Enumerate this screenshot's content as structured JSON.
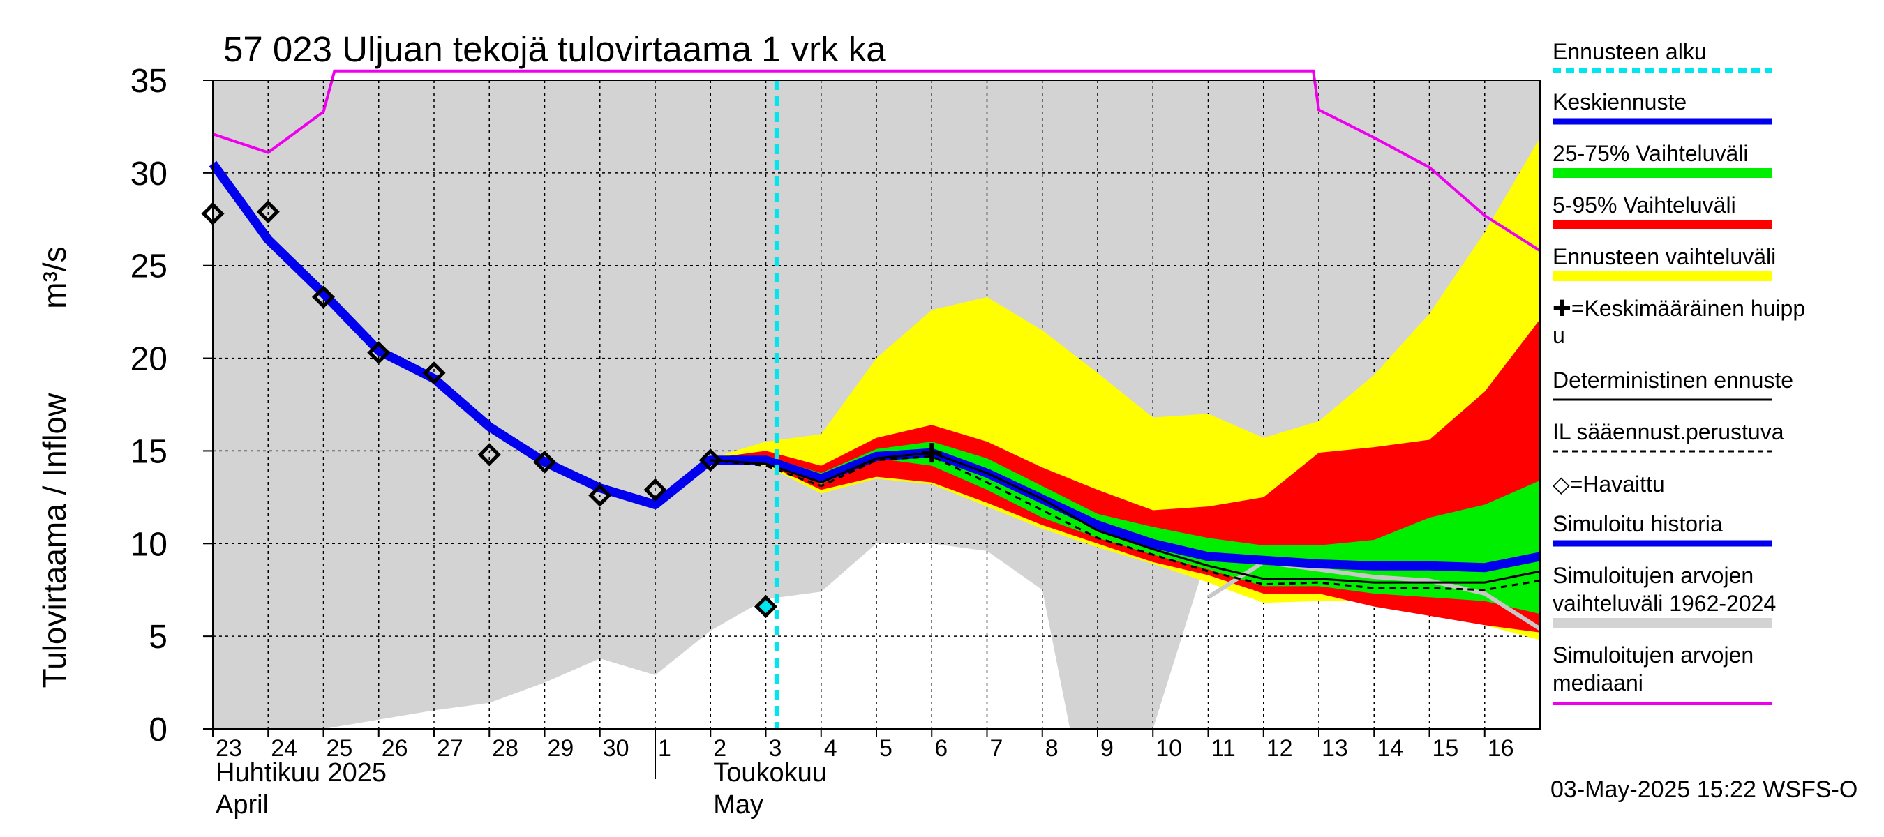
{
  "chart_data": {
    "type": "area",
    "title": "57 023 Uljuan tekojä tulovirtaama 1 vrk ka",
    "ylabel_text": "Tulovirtaama / Inflow",
    "yunit_text": "m³/s",
    "ylim": [
      0,
      35
    ],
    "yticks": [
      0,
      5,
      10,
      15,
      20,
      25,
      30,
      35
    ],
    "xlim": [
      0,
      24
    ],
    "x_tick_labels": [
      "23",
      "24",
      "25",
      "26",
      "27",
      "28",
      "29",
      "30",
      "1",
      "2",
      "3",
      "4",
      "5",
      "6",
      "7",
      "8",
      "9",
      "10",
      "11",
      "12",
      "13",
      "14",
      "15",
      "16"
    ],
    "month_labels": [
      {
        "fi": "Huhtikuu  2025",
        "en": "April",
        "x": 0
      },
      {
        "fi": "Toukokuu",
        "en": "May",
        "x": 9
      }
    ],
    "month_divider_x": 8,
    "forecast_start_x": 10.2,
    "timestamp": "03-May-2025 15:22 WSFS-O",
    "colors": {
      "hist_range": "#d3d3d3",
      "ennuste_range": "#ffff00",
      "range_5_95": "#ff0000",
      "range_25_75": "#00ee00",
      "mean": "#0000ee",
      "median": "#ee00ee",
      "forecast_start": "#00e5ee",
      "deterministic": "#000000"
    },
    "hist_range": {
      "x": [
        0,
        1,
        2,
        3,
        4,
        5,
        6,
        7,
        8,
        9,
        10,
        11,
        12,
        13,
        14,
        15,
        15.5,
        16,
        17,
        18,
        19,
        20,
        21,
        22,
        23,
        24
      ],
      "low": [
        0,
        0,
        0,
        0.5,
        1,
        1.4,
        2.5,
        3.8,
        2.9,
        5.3,
        7,
        7.4,
        10,
        10,
        9.6,
        7.5,
        0,
        0,
        0,
        9.5,
        9.5,
        9.5,
        9.5,
        9.5,
        9.5,
        9.5
      ],
      "high": [
        35,
        35,
        35,
        35,
        35,
        35,
        35,
        35,
        35,
        35,
        35,
        35,
        35,
        35,
        35,
        35,
        35,
        35,
        35,
        35,
        35,
        35,
        35,
        35,
        35,
        35
      ]
    },
    "median": {
      "x": [
        0,
        1,
        2,
        2.2,
        19.9,
        20,
        21,
        22,
        23,
        24
      ],
      "values": [
        32.1,
        31.1,
        33.3,
        35.5,
        35.5,
        33.4,
        31.9,
        30.3,
        27.7,
        25.8
      ]
    },
    "median_tail": {
      "x": [
        23,
        24
      ],
      "values": [
        25.8,
        24.8
      ]
    },
    "forecast_x": [
      9,
      10,
      11,
      12,
      13,
      14,
      15,
      16,
      17,
      18,
      19,
      20,
      21,
      22,
      23,
      24
    ],
    "ennuste_band": {
      "low": [
        14.4,
        14.2,
        12.7,
        13.5,
        13.2,
        12,
        10.8,
        9.8,
        8.9,
        7.9,
        6.8,
        6.9,
        6.9,
        6.2,
        5.6,
        4.8
      ],
      "high": [
        14.6,
        15.5,
        15.9,
        20,
        22.6,
        23.3,
        21.5,
        19.2,
        16.8,
        17,
        15.7,
        16.6,
        19.1,
        22.4,
        26.8,
        31.9
      ]
    },
    "band_5_95": {
      "low": [
        14.4,
        14.3,
        12.9,
        13.6,
        13.3,
        12.2,
        11,
        10,
        9,
        8.3,
        7.3,
        7.3,
        6.6,
        6.1,
        5.6,
        5.2
      ],
      "high": [
        14.6,
        15,
        14.2,
        15.7,
        16.4,
        15.5,
        14.1,
        12.9,
        11.8,
        12,
        12.5,
        14.9,
        15.2,
        15.6,
        18.2,
        22.1
      ]
    },
    "band_25_75": {
      "low": [
        14.4,
        14.6,
        13.2,
        14.6,
        14.2,
        12.9,
        11.4,
        10.3,
        9.4,
        8.6,
        7.7,
        7.7,
        7.3,
        7.1,
        6.9,
        6.2
      ],
      "high": [
        14.6,
        14.7,
        13.8,
        15.1,
        15.5,
        14.6,
        13.1,
        11.6,
        10.9,
        10.3,
        9.9,
        9.9,
        10.2,
        11.4,
        12.1,
        13.4
      ]
    },
    "mean_line": {
      "x": [
        0,
        1,
        2,
        3,
        4,
        5,
        6,
        7,
        8,
        9,
        10,
        11,
        12,
        13,
        14,
        15,
        16,
        17,
        18,
        19,
        20,
        21,
        22,
        23,
        24
      ],
      "values": [
        30.5,
        26.4,
        23.5,
        20.4,
        18.9,
        16.3,
        14.4,
        13,
        12.1,
        14.5,
        14.5,
        13.5,
        14.7,
        14.9,
        13.8,
        12.4,
        11,
        10,
        9.3,
        9.1,
        8.9,
        8.8,
        8.8,
        8.7,
        9.3
      ]
    },
    "deterministic": {
      "x": [
        9,
        10,
        11,
        12,
        13,
        14,
        15,
        16,
        17,
        18,
        19,
        20,
        21,
        22,
        23,
        24
      ],
      "values": [
        14.5,
        14.3,
        13.3,
        14.6,
        14.9,
        13.8,
        12.4,
        10.7,
        9.7,
        8.8,
        8.1,
        8.1,
        7.9,
        7.9,
        7.9,
        8.5
      ]
    },
    "il_forecast": {
      "x": [
        9,
        10,
        11,
        12,
        13,
        14,
        15,
        16,
        17,
        18,
        19,
        20,
        21,
        22,
        23,
        24
      ],
      "values": [
        14.5,
        14.2,
        13.1,
        14.5,
        14.7,
        13.3,
        11.8,
        10.3,
        9.4,
        8.5,
        7.8,
        7.9,
        7.6,
        7.6,
        7.5,
        8
      ]
    },
    "grey_line": {
      "x": [
        18,
        19,
        20,
        21,
        22,
        23,
        24
      ],
      "values": [
        7.1,
        9,
        8.6,
        8.2,
        8,
        7.3,
        5.4
      ]
    },
    "observed": {
      "x": [
        0,
        1,
        2,
        3,
        4,
        5,
        6,
        7,
        8,
        9,
        10
      ],
      "values": [
        27.8,
        27.9,
        23.3,
        20.3,
        19.2,
        14.8,
        14.4,
        12.6,
        12.9,
        14.5,
        6.6
      ]
    },
    "peak_marker": {
      "x": 13,
      "value": 14.9
    },
    "legend": [
      "Ennusteen alku",
      "Keskiennuste",
      "25-75% Vaihteluväli",
      "5-95% Vaihteluväli",
      "Ennusteen vaihteluväli",
      "✚=Keskimääräinen huippu",
      "Deterministinen ennuste",
      "IL sääennust.perustuva",
      "◇=Havaittu",
      "Simuloitu historia",
      "Simuloitujen arvojen vaihteluväli 1962-2024",
      "Simuloitujen arvojen mediaani"
    ]
  }
}
